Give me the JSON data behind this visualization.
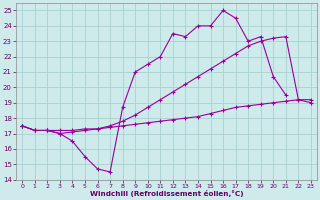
{
  "x": [
    0,
    1,
    2,
    3,
    4,
    5,
    6,
    7,
    8,
    9,
    10,
    11,
    12,
    13,
    14,
    15,
    16,
    17,
    18,
    19,
    20,
    21,
    22,
    23
  ],
  "line1": [
    17.5,
    17.2,
    17.2,
    17.0,
    16.5,
    15.5,
    14.7,
    14.5,
    18.7,
    21.0,
    21.5,
    22.0,
    23.5,
    23.3,
    24.0,
    24.0,
    25.0,
    24.5,
    23.0,
    23.3,
    20.7,
    19.5,
    null,
    null
  ],
  "line2": [
    17.5,
    17.2,
    17.2,
    17.0,
    17.1,
    17.2,
    17.3,
    17.5,
    17.8,
    18.2,
    18.7,
    19.2,
    19.7,
    20.2,
    20.7,
    21.2,
    21.7,
    22.2,
    22.7,
    23.0,
    23.2,
    23.3,
    19.2,
    19.0
  ],
  "line3": [
    17.5,
    17.2,
    17.2,
    17.2,
    17.2,
    17.3,
    17.3,
    17.4,
    17.5,
    17.6,
    17.7,
    17.8,
    17.9,
    18.0,
    18.1,
    18.3,
    18.5,
    18.7,
    18.8,
    18.9,
    19.0,
    19.1,
    19.2,
    19.2
  ],
  "line_color": "#990099",
  "bg_color": "#ceeaea",
  "grid_color": "#9ecece",
  "xlabel": "Windchill (Refroidissement éolien,°C)",
  "xlim": [
    -0.5,
    23.5
  ],
  "ylim": [
    14,
    25.5
  ],
  "yticks": [
    14,
    15,
    16,
    17,
    18,
    19,
    20,
    21,
    22,
    23,
    24,
    25
  ],
  "xticks": [
    0,
    1,
    2,
    3,
    4,
    5,
    6,
    7,
    8,
    9,
    10,
    11,
    12,
    13,
    14,
    15,
    16,
    17,
    18,
    19,
    20,
    21,
    22,
    23
  ],
  "xlabel_color": "#660066",
  "tick_color": "#660066",
  "marker": "+",
  "markersize": 3.5,
  "linewidth": 0.8
}
